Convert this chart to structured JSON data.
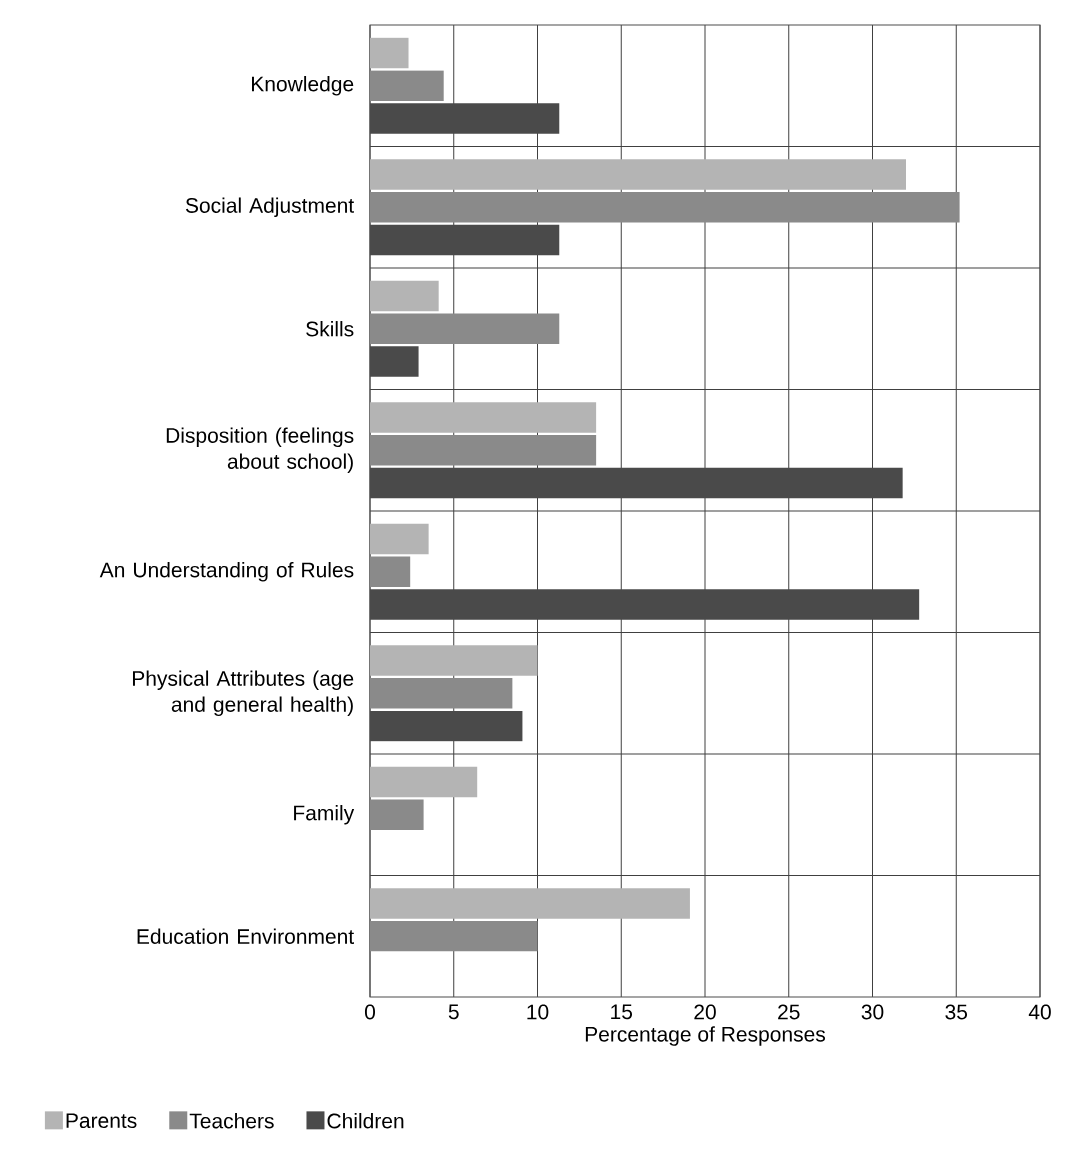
{
  "chart_data": {
    "type": "bar",
    "orientation": "horizontal",
    "xlabel": "Percentage of Responses",
    "categories": [
      "Knowledge",
      "Social Adjustment",
      "Skills",
      "Disposition (feelings about school)",
      "An Understanding of Rules",
      "Physical Attributes (age and general health)",
      "Family",
      "Education Environment"
    ],
    "series": [
      {
        "name": "Parents",
        "color": "#b4b4b4",
        "values": [
          2.3,
          32,
          4.1,
          13.5,
          3.5,
          10,
          6.4,
          19.1
        ]
      },
      {
        "name": "Teachers",
        "color": "#8a8a8a",
        "values": [
          4.4,
          35.2,
          11.3,
          13.5,
          2.4,
          8.5,
          3.2,
          10
        ]
      },
      {
        "name": "Children",
        "color": "#4a4a4a",
        "values": [
          11.3,
          11.3,
          2.9,
          31.8,
          32.8,
          9.1,
          null,
          null
        ]
      }
    ],
    "xlim": [
      0,
      40
    ],
    "xticks": [
      0,
      5,
      10,
      15,
      20,
      25,
      30,
      35,
      40
    ],
    "grid": true,
    "legend": "bottom left"
  }
}
